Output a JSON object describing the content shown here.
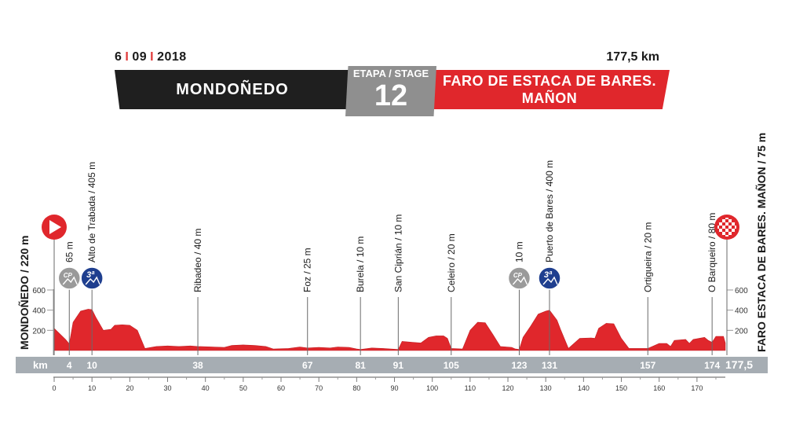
{
  "header": {
    "date_day": "6",
    "date_month": "09",
    "date_year": "2018",
    "date_separator": "I",
    "distance": "177,5 km",
    "start_city": "MONDOÑEDO",
    "stage_label": "ETAPA / STAGE",
    "stage_number": "12",
    "finish_city": "FARO DE ESTACA DE BARES.\nMAÑON"
  },
  "profile": {
    "start_label": "MONDOÑEDO / 220 m",
    "finish_label": "FARO ESTACA DE BARES. MAÑON / 75 m",
    "km_unit": "km",
    "distance_total": "177,5",
    "y_ticks": [
      {
        "value": 600,
        "label": "600"
      },
      {
        "value": 400,
        "label": "400"
      },
      {
        "value": 200,
        "label": "200"
      }
    ],
    "x_ticks": [
      0,
      10,
      20,
      30,
      40,
      50,
      60,
      70,
      80,
      90,
      100,
      110,
      120,
      130,
      140,
      150,
      160,
      170
    ],
    "points": [
      {
        "km": 4,
        "label": "65 m",
        "badge": "cp"
      },
      {
        "km": 10,
        "label": "Alto de Trabada / 405 m",
        "badge": "3ª"
      },
      {
        "km": 38,
        "label": "Ribadeo / 40 m",
        "badge": ""
      },
      {
        "km": 67,
        "label": "Foz / 25 m",
        "badge": ""
      },
      {
        "km": 81,
        "label": "Burela / 10 m",
        "badge": ""
      },
      {
        "km": 91,
        "label": "San Ciprián / 10 m",
        "badge": ""
      },
      {
        "km": 105,
        "label": "Celeiro / 20 m",
        "badge": ""
      },
      {
        "km": 123,
        "label": "10 m",
        "badge": "cp"
      },
      {
        "km": 131,
        "label": "Puerto de Bares / 400 m",
        "badge": "3ª"
      },
      {
        "km": 157,
        "label": "Ortigueira / 20 m",
        "badge": ""
      },
      {
        "km": 174,
        "label": "O Barqueiro / 80 m",
        "badge": ""
      }
    ],
    "badges": {
      "cp_text": "CP",
      "cat_text": "3ª"
    },
    "elevation": [
      [
        0,
        220
      ],
      [
        3,
        110
      ],
      [
        4,
        65
      ],
      [
        5,
        280
      ],
      [
        7,
        390
      ],
      [
        9,
        410
      ],
      [
        10,
        405
      ],
      [
        11,
        330
      ],
      [
        13,
        200
      ],
      [
        15,
        210
      ],
      [
        16,
        250
      ],
      [
        18,
        255
      ],
      [
        20,
        250
      ],
      [
        22,
        200
      ],
      [
        24,
        20
      ],
      [
        27,
        40
      ],
      [
        30,
        45
      ],
      [
        33,
        40
      ],
      [
        36,
        45
      ],
      [
        38,
        40
      ],
      [
        42,
        35
      ],
      [
        45,
        30
      ],
      [
        47,
        50
      ],
      [
        50,
        55
      ],
      [
        53,
        50
      ],
      [
        56,
        40
      ],
      [
        58,
        15
      ],
      [
        62,
        20
      ],
      [
        65,
        35
      ],
      [
        67,
        25
      ],
      [
        70,
        30
      ],
      [
        73,
        25
      ],
      [
        75,
        35
      ],
      [
        78,
        30
      ],
      [
        80,
        15
      ],
      [
        81,
        10
      ],
      [
        84,
        25
      ],
      [
        87,
        20
      ],
      [
        89,
        15
      ],
      [
        91,
        10
      ],
      [
        92,
        90
      ],
      [
        95,
        80
      ],
      [
        97,
        75
      ],
      [
        99,
        130
      ],
      [
        101,
        145
      ],
      [
        103,
        145
      ],
      [
        104,
        120
      ],
      [
        105,
        20
      ],
      [
        108,
        15
      ],
      [
        110,
        200
      ],
      [
        112,
        280
      ],
      [
        114,
        275
      ],
      [
        116,
        160
      ],
      [
        118,
        40
      ],
      [
        121,
        30
      ],
      [
        122,
        15
      ],
      [
        123,
        10
      ],
      [
        124,
        130
      ],
      [
        126,
        240
      ],
      [
        128,
        360
      ],
      [
        130,
        390
      ],
      [
        131,
        400
      ],
      [
        133,
        300
      ],
      [
        134,
        200
      ],
      [
        136,
        20
      ],
      [
        139,
        120
      ],
      [
        142,
        125
      ],
      [
        143,
        120
      ],
      [
        144,
        220
      ],
      [
        146,
        270
      ],
      [
        148,
        265
      ],
      [
        150,
        120
      ],
      [
        152,
        20
      ],
      [
        155,
        20
      ],
      [
        157,
        20
      ],
      [
        160,
        70
      ],
      [
        162,
        70
      ],
      [
        163,
        40
      ],
      [
        164,
        100
      ],
      [
        167,
        110
      ],
      [
        168,
        70
      ],
      [
        169,
        110
      ],
      [
        172,
        130
      ],
      [
        173,
        100
      ],
      [
        174,
        80
      ],
      [
        175,
        140
      ],
      [
        177,
        140
      ],
      [
        177.5,
        75
      ]
    ]
  },
  "colors": {
    "red": "#e0272c",
    "dark": "#1f1f1f",
    "grey": "#8f8f8f",
    "cat_blue": "#1f3f8f",
    "cp_grey": "#9a9a9a",
    "bar": "#a6adb3"
  }
}
